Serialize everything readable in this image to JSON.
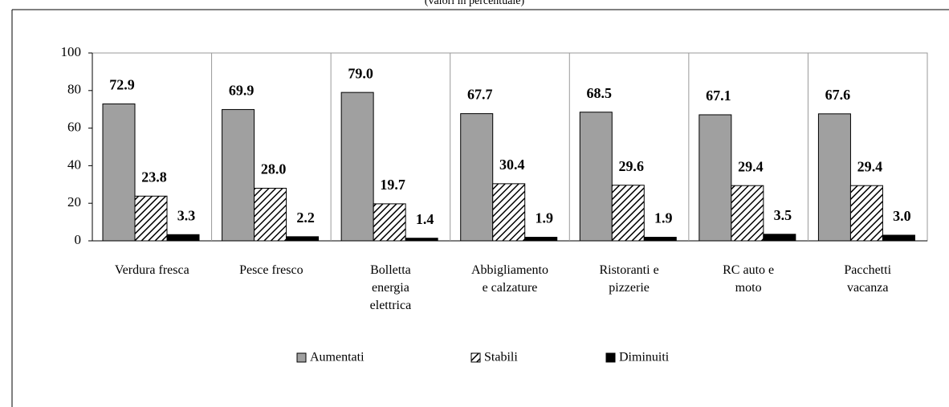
{
  "chart_data": {
    "type": "bar",
    "subtitle": "(valori in percentuale)",
    "categories": [
      "Verdura fresca",
      "Pesce fresco",
      "Bolletta\nenergia\nelettrica",
      "Abbigliamento\ne calzature",
      "Ristoranti e\npizzerie",
      "RC auto e\nmoto",
      "Pacchetti\nvacanza"
    ],
    "series": [
      {
        "name": "Aumentati",
        "color": "#a0a0a0",
        "values": [
          72.9,
          69.9,
          79.0,
          67.7,
          68.5,
          67.1,
          67.6
        ],
        "value_labels": [
          "72.9",
          "69.9",
          "79.0",
          "67.7",
          "68.5",
          "67.1",
          "67.6"
        ]
      },
      {
        "name": "Stabili",
        "color": "hatch",
        "values": [
          23.8,
          28.0,
          19.7,
          30.4,
          29.6,
          29.4,
          29.4
        ],
        "value_labels": [
          "23.8",
          "28.0",
          "19.7",
          "30.4",
          "29.6",
          "29.4",
          "29.4"
        ]
      },
      {
        "name": "Diminuiti",
        "color": "#000000",
        "values": [
          3.3,
          2.2,
          1.4,
          1.9,
          1.9,
          3.5,
          3.0
        ],
        "value_labels": [
          "3.3",
          "2.2",
          "1.4",
          "1.9",
          "1.9",
          "3.5",
          "3.0"
        ]
      }
    ],
    "ylim": [
      0,
      100
    ],
    "yticks": [
      0,
      20,
      40,
      60,
      80,
      100
    ],
    "legend": "bottom"
  }
}
